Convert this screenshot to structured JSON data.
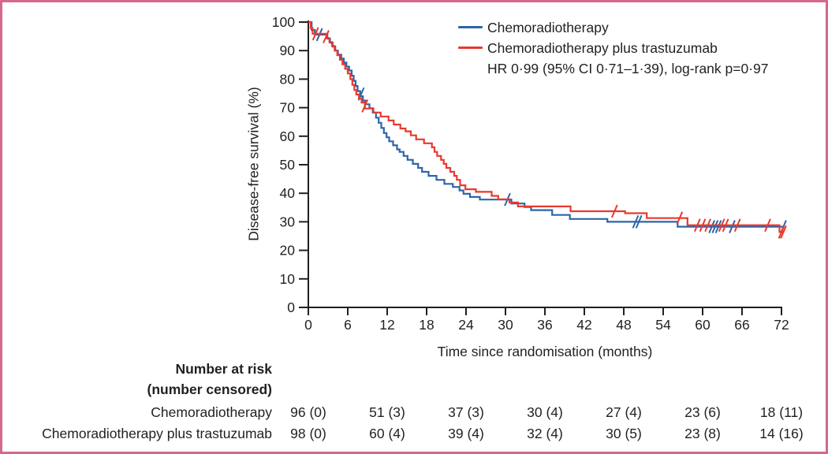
{
  "figure": {
    "border_color": "#d5688e",
    "background_color": "#ffffff",
    "text_color": "#231f20",
    "axis_color": "#231f20"
  },
  "chart_data": {
    "type": "line",
    "subtype": "kaplan-meier-step",
    "title": "",
    "xlabel": "Time since randomisation (months)",
    "ylabel": "Disease-free survival (%)",
    "xlim": [
      0,
      72
    ],
    "ylim": [
      0,
      100
    ],
    "x_ticks": [
      0,
      6,
      12,
      18,
      24,
      30,
      36,
      42,
      48,
      54,
      60,
      66,
      72
    ],
    "y_ticks": [
      0,
      10,
      20,
      30,
      40,
      50,
      60,
      70,
      80,
      90,
      100
    ],
    "grid": false,
    "legend_position": "top-right-inside",
    "annotation": "HR 0·99 (95% CI 0·71–1·39), log-rank p=0·97",
    "series": [
      {
        "name": "Chemoradiotherapy",
        "color": "#2d65a9",
        "points": [
          [
            0,
            100
          ],
          [
            0.5,
            97.2
          ],
          [
            1.0,
            95.6
          ],
          [
            2.9,
            94.2
          ],
          [
            3.3,
            92.8
          ],
          [
            3.7,
            91.4
          ],
          [
            4.1,
            90.0
          ],
          [
            4.5,
            88.6
          ],
          [
            5.0,
            87.2
          ],
          [
            5.4,
            85.8
          ],
          [
            5.8,
            84.4
          ],
          [
            6.2,
            83.0
          ],
          [
            6.6,
            81.2
          ],
          [
            6.9,
            79.4
          ],
          [
            7.2,
            77.6
          ],
          [
            7.5,
            75.8
          ],
          [
            7.9,
            74.0
          ],
          [
            8.3,
            72.5
          ],
          [
            8.7,
            71.2
          ],
          [
            9.3,
            69.8
          ],
          [
            9.8,
            68.3
          ],
          [
            10.3,
            66.5
          ],
          [
            10.7,
            64.7
          ],
          [
            11.1,
            62.9
          ],
          [
            11.5,
            61.1
          ],
          [
            11.9,
            59.6
          ],
          [
            12.3,
            58.2
          ],
          [
            12.9,
            56.8
          ],
          [
            13.5,
            55.4
          ],
          [
            13.9,
            54.5
          ],
          [
            14.5,
            53.1
          ],
          [
            15.1,
            51.7
          ],
          [
            15.9,
            50.3
          ],
          [
            16.7,
            48.9
          ],
          [
            17.3,
            47.5
          ],
          [
            18.3,
            46.1
          ],
          [
            19.5,
            44.7
          ],
          [
            20.7,
            43.3
          ],
          [
            22.0,
            42.2
          ],
          [
            23.0,
            41.0
          ],
          [
            23.6,
            39.8
          ],
          [
            24.6,
            38.7
          ],
          [
            26.1,
            37.8
          ],
          [
            30.9,
            36.4
          ],
          [
            32.9,
            35.2
          ],
          [
            33.9,
            34.1
          ],
          [
            37.1,
            32.4
          ],
          [
            39.8,
            31.0
          ],
          [
            45.5,
            30.0
          ],
          [
            56.2,
            28.3
          ],
          [
            72.4,
            28.3
          ]
        ],
        "censor_marks": [
          [
            1.7,
            95.6
          ],
          [
            8.05,
            74.8
          ],
          [
            30.3,
            37.8
          ],
          [
            49.8,
            30.0
          ],
          [
            50.3,
            30.0
          ],
          [
            61.4,
            28.3
          ],
          [
            61.9,
            28.3
          ],
          [
            62.4,
            28.3
          ],
          [
            64.5,
            28.3
          ],
          [
            72.3,
            28.3
          ]
        ]
      },
      {
        "name": "Chemoradiotherapy plus trastuzumab",
        "color": "#e8392f",
        "points": [
          [
            0,
            100
          ],
          [
            0.36,
            97.9
          ],
          [
            0.65,
            95.9
          ],
          [
            2.8,
            94.4
          ],
          [
            3.2,
            93.0
          ],
          [
            3.6,
            91.6
          ],
          [
            4.0,
            90.0
          ],
          [
            4.4,
            88.4
          ],
          [
            4.8,
            86.8
          ],
          [
            5.2,
            85.2
          ],
          [
            5.6,
            83.6
          ],
          [
            6.0,
            82.0
          ],
          [
            6.4,
            80.0
          ],
          [
            6.7,
            78.0
          ],
          [
            7.0,
            76.2
          ],
          [
            7.3,
            74.6
          ],
          [
            7.7,
            73.2
          ],
          [
            8.1,
            71.8
          ],
          [
            8.6,
            69.7
          ],
          [
            9.9,
            68.3
          ],
          [
            11.0,
            66.9
          ],
          [
            12.2,
            65.5
          ],
          [
            13.0,
            64.1
          ],
          [
            14.0,
            62.7
          ],
          [
            14.8,
            61.7
          ],
          [
            15.6,
            60.3
          ],
          [
            16.4,
            58.9
          ],
          [
            17.6,
            57.5
          ],
          [
            18.8,
            56.1
          ],
          [
            19.2,
            54.5
          ],
          [
            19.6,
            53.1
          ],
          [
            20.2,
            51.7
          ],
          [
            20.6,
            50.3
          ],
          [
            21.0,
            48.9
          ],
          [
            21.6,
            47.5
          ],
          [
            22.2,
            46.1
          ],
          [
            22.6,
            44.7
          ],
          [
            23.1,
            42.8
          ],
          [
            23.9,
            41.4
          ],
          [
            25.5,
            40.5
          ],
          [
            27.9,
            39.1
          ],
          [
            28.9,
            37.9
          ],
          [
            30.6,
            36.8
          ],
          [
            31.9,
            35.4
          ],
          [
            39.9,
            33.7
          ],
          [
            48.2,
            33.0
          ],
          [
            51.5,
            31.3
          ],
          [
            57.7,
            28.8
          ],
          [
            71.7,
            26.4
          ],
          [
            72.4,
            26.4
          ]
        ],
        "censor_marks": [
          [
            1.1,
            95.9
          ],
          [
            2.7,
            94.9
          ],
          [
            8.6,
            70.6
          ],
          [
            46.6,
            33.7
          ],
          [
            56.5,
            31.3
          ],
          [
            59.2,
            28.8
          ],
          [
            60.0,
            28.8
          ],
          [
            60.8,
            28.8
          ],
          [
            62.9,
            28.8
          ],
          [
            63.5,
            28.8
          ],
          [
            65.3,
            28.8
          ],
          [
            69.9,
            28.8
          ],
          [
            72.0,
            26.4
          ],
          [
            72.3,
            26.4
          ]
        ]
      }
    ]
  },
  "risk_table": {
    "header_line1": "Number at risk",
    "header_line2": "(number censored)",
    "times": [
      0,
      12,
      24,
      36,
      48,
      60,
      72
    ],
    "rows": [
      {
        "label": "Chemoradiotherapy",
        "counts": [
          "96 (0)",
          "51 (3)",
          "37 (3)",
          "30 (4)",
          "27 (4)",
          "23 (6)",
          "18 (11)"
        ]
      },
      {
        "label": "Chemoradiotherapy plus trastuzumab",
        "counts": [
          "98 (0)",
          "60 (4)",
          "39 (4)",
          "32 (4)",
          "30 (5)",
          "23 (8)",
          "14 (16)"
        ]
      }
    ]
  }
}
